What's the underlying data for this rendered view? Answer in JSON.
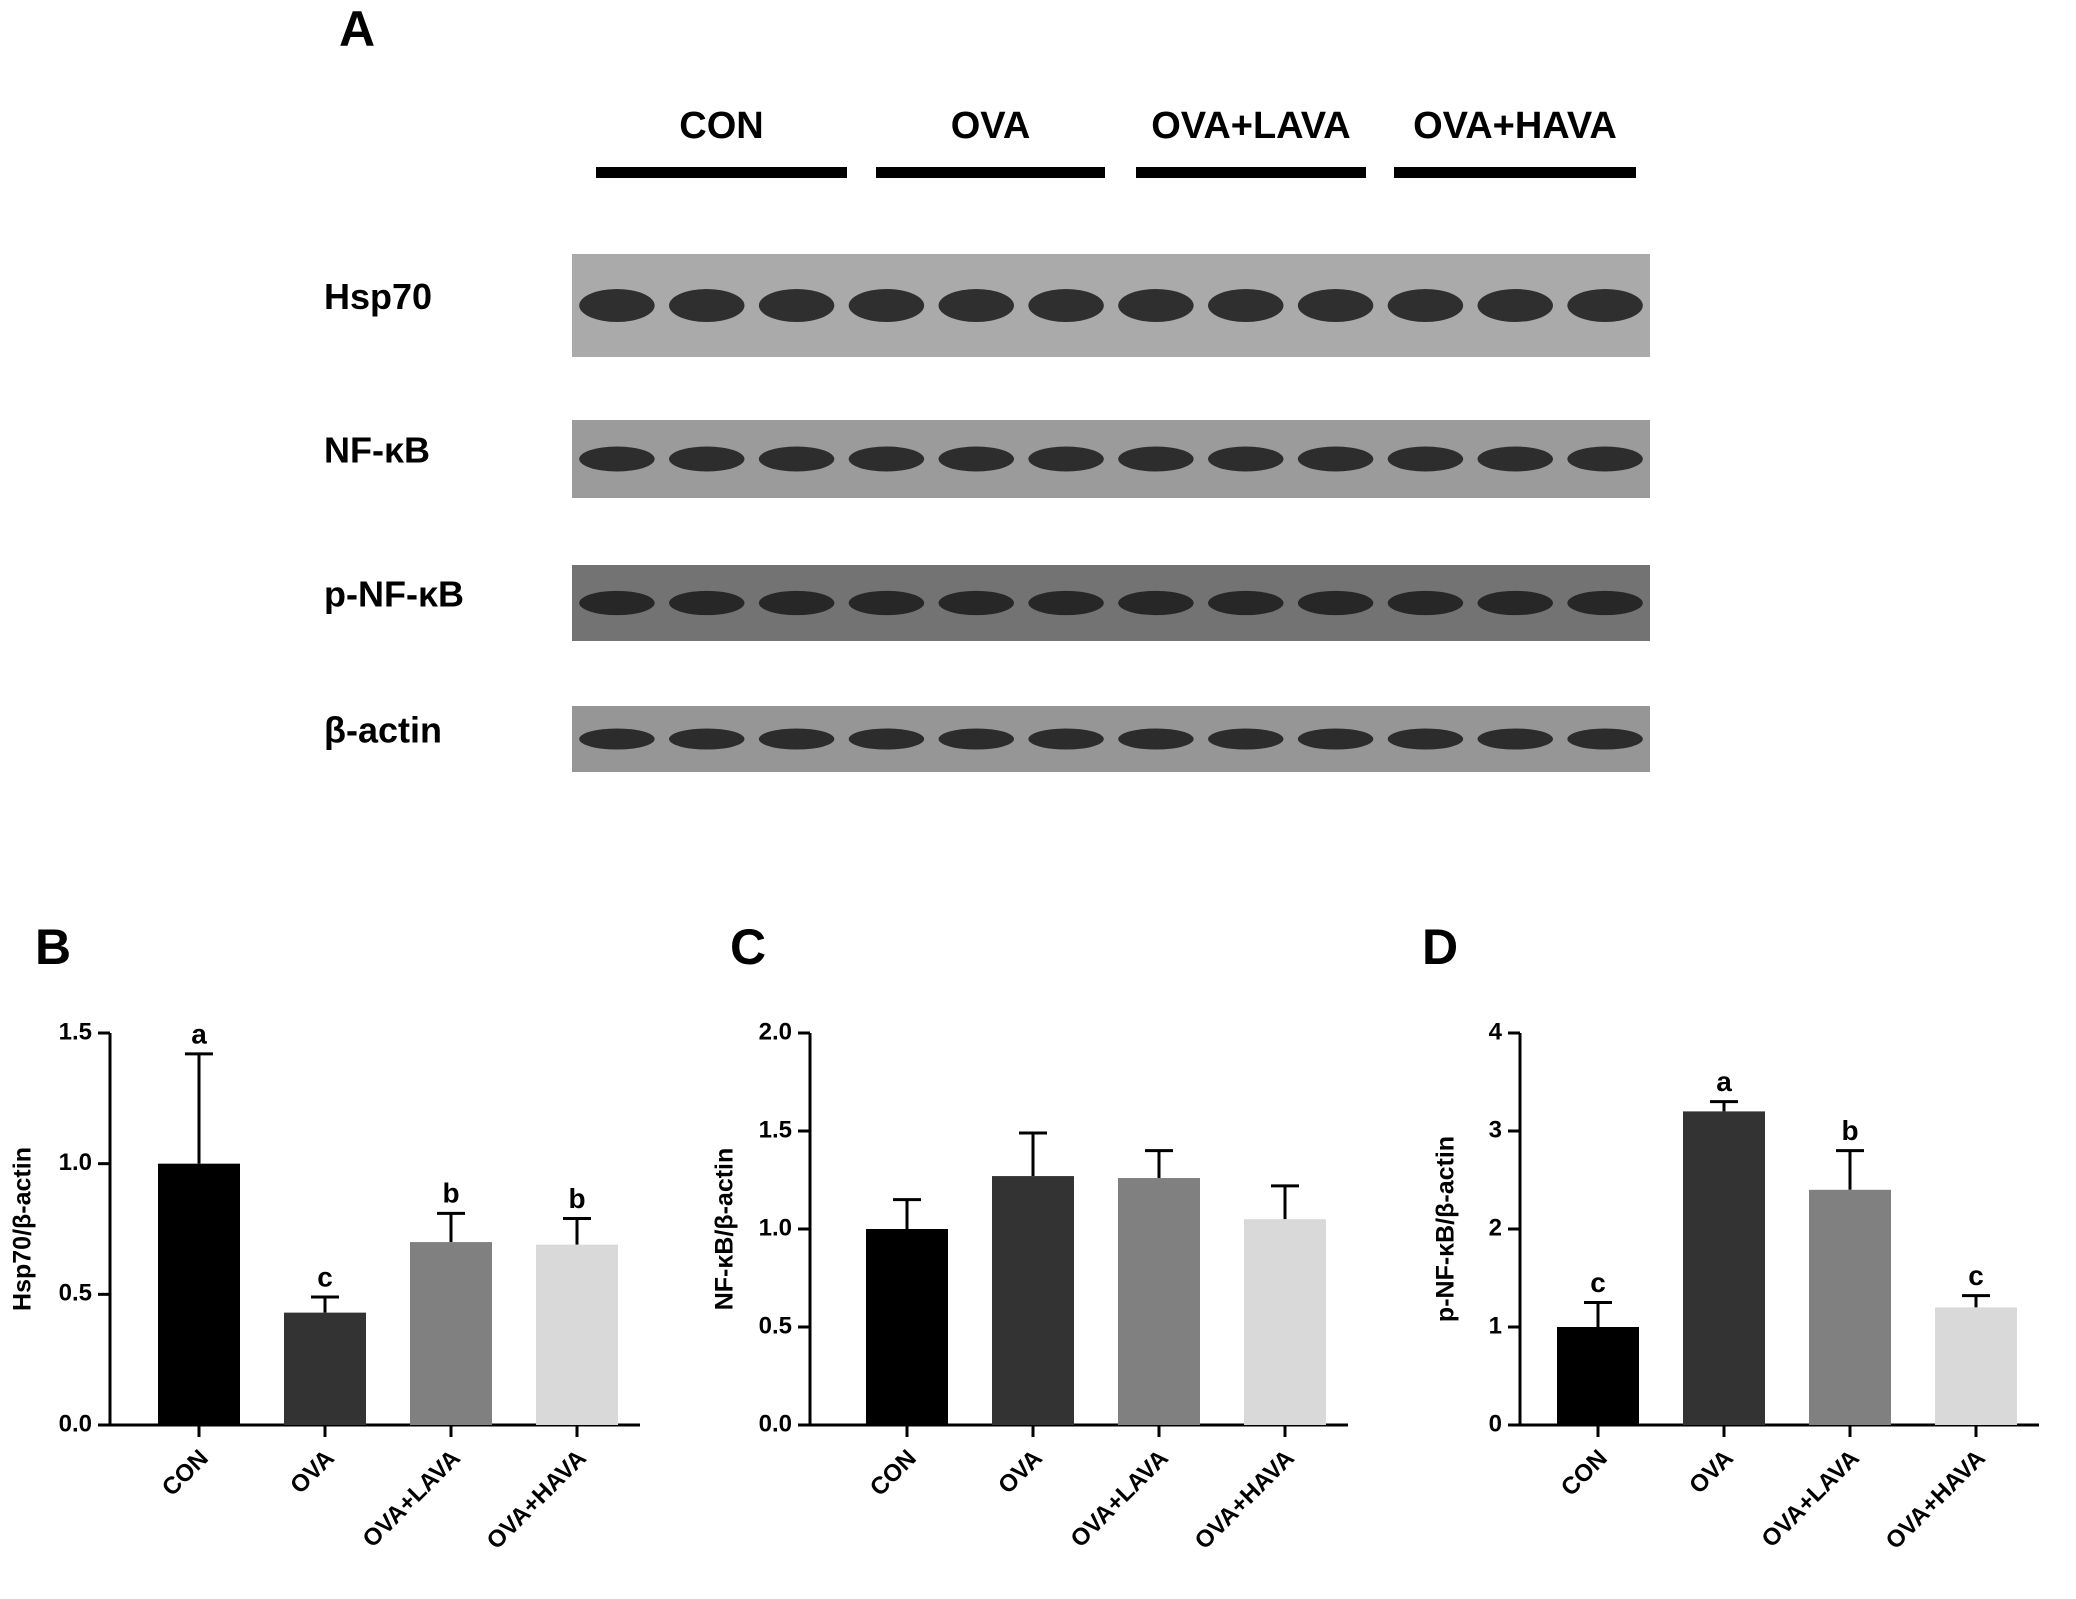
{
  "panel_a": {
    "label": "A",
    "groups": [
      "CON",
      "OVA",
      "OVA+LAVA",
      "OVA+HAVA"
    ],
    "proteins": [
      "Hsp70",
      "NF-κB",
      "p-NF-κB",
      "β-actin"
    ]
  },
  "chart_data": [
    {
      "type": "bar",
      "panel_label": "B",
      "y_label": "Hsp70/β-actin",
      "categories": [
        "CON",
        "OVA",
        "OVA+LAVA",
        "OVA+HAVA"
      ],
      "values": [
        1.0,
        0.43,
        0.7,
        0.69
      ],
      "errors": [
        0.42,
        0.06,
        0.11,
        0.1
      ],
      "annotations": [
        "a",
        "c",
        "b",
        "b"
      ],
      "colors": [
        "#000000",
        "#333333",
        "#808080",
        "#d9d9d9"
      ],
      "ylim": [
        0,
        1.5
      ],
      "yticks": [
        {
          "value": 0,
          "label": "0.0"
        },
        0.5,
        {
          "value": 1,
          "label": "1.0"
        },
        1.5
      ]
    },
    {
      "type": "bar",
      "panel_label": "C",
      "y_label": "NF-κB/β-actin",
      "categories": [
        "CON",
        "OVA",
        "OVA+LAVA",
        "OVA+HAVA"
      ],
      "values": [
        1.0,
        1.27,
        1.26,
        1.05
      ],
      "errors": [
        0.15,
        0.22,
        0.14,
        0.17
      ],
      "colors": [
        "#000000",
        "#333333",
        "#808080",
        "#d9d9d9"
      ],
      "ylim": [
        0,
        2
      ],
      "yticks": [
        {
          "value": 0,
          "label": "0.0"
        },
        0.5,
        {
          "value": 1,
          "label": "1.0"
        },
        1.5,
        {
          "value": 2,
          "label": "2.0"
        }
      ]
    },
    {
      "type": "bar",
      "panel_label": "D",
      "y_label": "p-NF-κB/β-actin",
      "categories": [
        "CON",
        "OVA",
        "OVA+LAVA",
        "OVA+HAVA"
      ],
      "values": [
        1.0,
        3.2,
        2.4,
        1.2
      ],
      "errors": [
        0.25,
        0.1,
        0.4,
        0.12
      ],
      "annotations": [
        "c",
        "a",
        "b",
        "c"
      ],
      "colors": [
        "#000000",
        "#333333",
        "#808080",
        "#d9d9d9"
      ],
      "ylim": [
        0,
        4
      ],
      "yticks": [
        0,
        1,
        2,
        3,
        4
      ]
    }
  ]
}
